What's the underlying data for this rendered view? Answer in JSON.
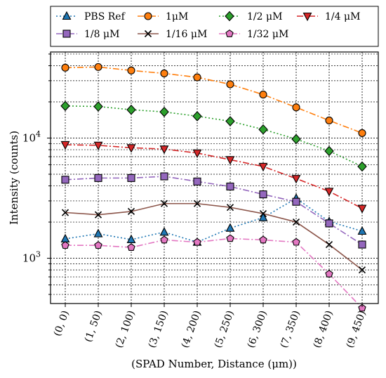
{
  "chart_data": {
    "type": "line",
    "xlabel": "(SPAD Number,  Distance (μm))",
    "ylabel": "Intensity (counts)",
    "yscale": "log",
    "ylim": [
      420,
      52000
    ],
    "grid": "both-major-and-minor-y, major-x",
    "legend_position": "top",
    "categories": [
      "(0, 0)",
      "(1, 50)",
      "(2, 100)",
      "(3, 150)",
      "(4, 200)",
      "(5, 250)",
      "(6, 300)",
      "(7, 350)",
      "(8, 400)",
      "(9, 450)"
    ],
    "y_ticks": [
      {
        "value": 1000,
        "label": "10",
        "exp": "3"
      },
      {
        "value": 10000,
        "label": "10",
        "exp": "4"
      }
    ],
    "series": [
      {
        "name": "PBS Ref",
        "color": "#1f77b4",
        "linestyle": "dotted",
        "marker": "triangle",
        "values": [
          1450,
          1600,
          1430,
          1650,
          1360,
          1780,
          2180,
          3150,
          2020,
          1680
        ]
      },
      {
        "name": "1μM",
        "color": "#ff7f0e",
        "linestyle": "dashdot",
        "marker": "circle",
        "values": [
          38500,
          39000,
          36500,
          34500,
          32000,
          28000,
          23000,
          18000,
          14000,
          11000
        ]
      },
      {
        "name": "1/2 μM",
        "color": "#2ca02c",
        "linestyle": "dotted",
        "marker": "diamond",
        "values": [
          18500,
          18300,
          17200,
          16500,
          15200,
          13800,
          11800,
          9800,
          7800,
          5800
        ]
      },
      {
        "name": "1/4 μM",
        "color": "#d62728",
        "linestyle": "dashdot",
        "marker": "triangle-down",
        "values": [
          8800,
          8700,
          8300,
          8100,
          7500,
          6600,
          5800,
          4600,
          3600,
          2600
        ]
      },
      {
        "name": "1/8 μM",
        "color": "#9467bd",
        "linestyle": "dashdot",
        "marker": "square",
        "values": [
          4500,
          4650,
          4650,
          4800,
          4350,
          3950,
          3400,
          2950,
          1950,
          1300
        ]
      },
      {
        "name": "1/16 μM",
        "color": "#8c564b",
        "linestyle": "solid",
        "marker": "x",
        "values": [
          2400,
          2300,
          2450,
          2850,
          2850,
          2650,
          2350,
          2000,
          1300,
          800
        ]
      },
      {
        "name": "1/32 μM",
        "color": "#e377c2",
        "linestyle": "dashdot",
        "marker": "pentagon",
        "values": [
          1280,
          1280,
          1230,
          1420,
          1360,
          1460,
          1420,
          1360,
          740,
          385
        ]
      }
    ]
  }
}
